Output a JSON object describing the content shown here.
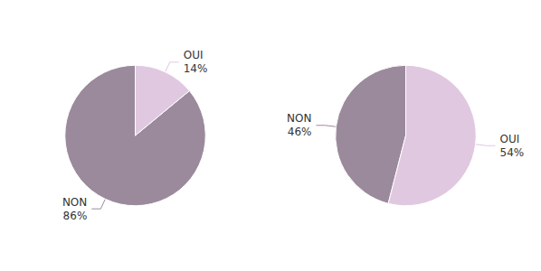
{
  "chart_data": [
    {
      "type": "pie",
      "categories": [
        "NON",
        "OUI"
      ],
      "values": [
        86,
        14
      ],
      "value_labels": [
        "86%",
        "14%"
      ],
      "colors": [
        "#9b8a9b",
        "#e0c8e0"
      ]
    },
    {
      "type": "pie",
      "categories": [
        "NON",
        "OUI"
      ],
      "values": [
        46,
        54
      ],
      "value_labels": [
        "46%",
        "54%"
      ],
      "colors": [
        "#9b8a9b",
        "#e0c8e0"
      ]
    }
  ]
}
